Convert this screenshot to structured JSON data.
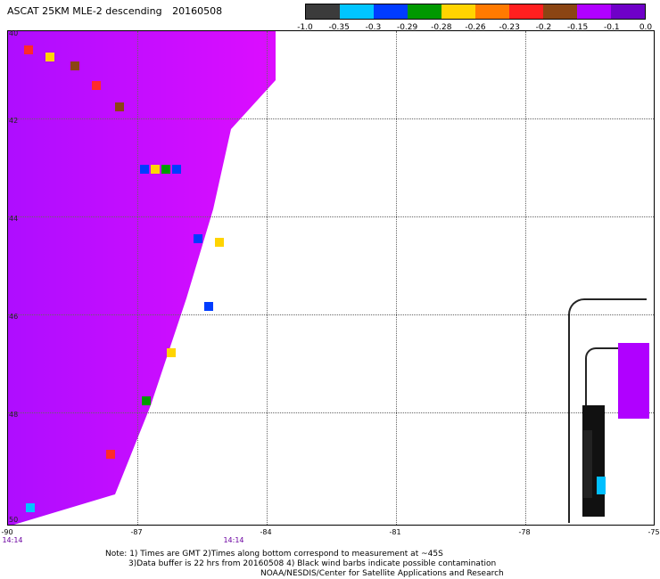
{
  "header": {
    "title": "ASCAT 25KM MLE-2 descending",
    "date": "20160508"
  },
  "legend": {
    "colors": [
      "#3b3b3b",
      "#00c5ff",
      "#003cff",
      "#009900",
      "#ffd400",
      "#ff7a00",
      "#ff1f1f",
      "#8b4513",
      "#b000ff",
      "#6f00c8"
    ],
    "labels": [
      "-1.0",
      "-0.35",
      "-0.3",
      "-0.29",
      "-0.28",
      "-0.26",
      "-0.23",
      "-0.2",
      "-0.15",
      "-0.1",
      "0.0"
    ]
  },
  "map": {
    "y_ticks": [
      "40",
      "42",
      "44",
      "46",
      "48",
      "50"
    ],
    "x_ticks": [
      "-90",
      "-87",
      "-84",
      "-81",
      "-78",
      "-75"
    ],
    "time_labels": [
      "14:14",
      "14:14"
    ]
  },
  "notes": {
    "line1": "Note: 1) Times are GMT 2)Times along bottom correspond to measurement at ~45S",
    "line2": "3)Data buffer is 22 hrs from 20160508 4) Black wind barbs indicate possible contamination",
    "line3": "NOAA/NESDIS/Center for Satellite Applications and Research"
  },
  "colors": {
    "grid": "#666666",
    "swath_primary": "#b000ff",
    "land_outline": "#000000"
  }
}
